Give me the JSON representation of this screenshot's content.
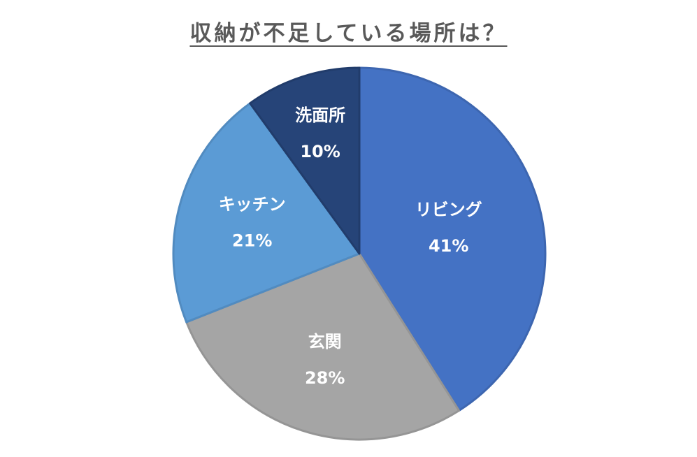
{
  "chart_data": {
    "type": "pie",
    "title": "収納が不足している場所は？",
    "categories": [
      "リビング",
      "玄関",
      "キッチン",
      "洗面所"
    ],
    "values": [
      41,
      28,
      21,
      10
    ],
    "data_labels": [
      "41%",
      "28%",
      "21%",
      "10%"
    ],
    "unit": "%",
    "colors": [
      "#4472C4",
      "#A5A5A5",
      "#5B9BD5",
      "#264478"
    ],
    "border_colors": [
      "#3D66B0",
      "#959595",
      "#518BC0",
      "#213C6B"
    ],
    "label_color": "#FFFFFF",
    "title_color": "#595959",
    "legend": "none",
    "label_position": "inside"
  }
}
